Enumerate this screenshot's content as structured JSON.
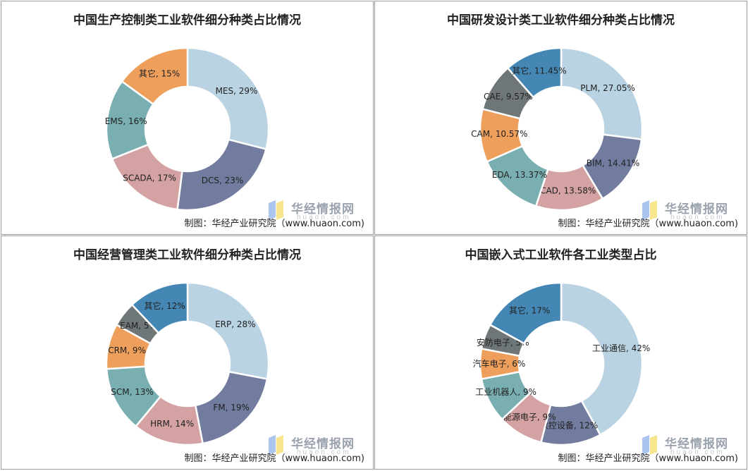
{
  "watermark": {
    "brand": "华经情报网",
    "site": "huaon.com"
  },
  "chart_data": [
    {
      "type": "pie",
      "title": "中国生产控制类工业软件细分种类占比情况",
      "credit": "制图：华经产业研究院（www.huaon.com)",
      "slices": [
        {
          "label": "MES, 29%",
          "value": 29,
          "color": "#b9d3e3"
        },
        {
          "label": "DCS, 23%",
          "value": 23,
          "color": "#727c9e"
        },
        {
          "label": "SCADA, 17%",
          "value": 17,
          "color": "#d4a2a3"
        },
        {
          "label": "EMS, 16%",
          "value": 16,
          "color": "#79afb1"
        },
        {
          "label": "其它, 15%",
          "value": 15,
          "color": "#ee9f5b"
        }
      ]
    },
    {
      "type": "pie",
      "title": "中国研发设计类工业软件细分种类占比情况",
      "credit": "制图：华经产业研究院（www.huaon.com)",
      "slices": [
        {
          "label": "PLM, 27.05%",
          "value": 27.05,
          "color": "#b9d3e3"
        },
        {
          "label": "BIM, 14.41%",
          "value": 14.41,
          "color": "#727c9e"
        },
        {
          "label": "CAD, 13.58%",
          "value": 13.58,
          "color": "#d4a2a3"
        },
        {
          "label": "EDA, 13.37%",
          "value": 13.37,
          "color": "#79afb1"
        },
        {
          "label": "CAM, 10.57%",
          "value": 10.57,
          "color": "#ee9f5b"
        },
        {
          "label": "CAE, 9.57%",
          "value": 9.57,
          "color": "#6f7677"
        },
        {
          "label": "其它, 11.45%",
          "value": 11.45,
          "color": "#4487b4"
        }
      ]
    },
    {
      "type": "pie",
      "title": "中国经营管理类工业软件细分种类占比情况",
      "credit": "制图：华经产业研究院（www.huaon.com)",
      "slices": [
        {
          "label": "ERP, 28%",
          "value": 28,
          "color": "#b9d3e3"
        },
        {
          "label": "FM, 19%",
          "value": 19,
          "color": "#727c9e"
        },
        {
          "label": "HRM, 14%",
          "value": 14,
          "color": "#d4a2a3"
        },
        {
          "label": "SCM, 13%",
          "value": 13,
          "color": "#79afb1"
        },
        {
          "label": "CRM, 9%",
          "value": 9,
          "color": "#ee9f5b"
        },
        {
          "label": "EAM, 5%",
          "value": 5,
          "color": "#6f7677"
        },
        {
          "label": "其它, 12%",
          "value": 12,
          "color": "#4487b4"
        }
      ]
    },
    {
      "type": "pie",
      "title": "中国嵌入式工业软件各工业类型占比",
      "credit": "制图：华经产业研究院（www.huaon.com)",
      "slices": [
        {
          "label": "工业通信, 42%",
          "value": 42,
          "color": "#b9d3e3"
        },
        {
          "label": "数控设备, 12%",
          "value": 12,
          "color": "#727c9e"
        },
        {
          "label": "能源电子, 9%",
          "value": 9,
          "color": "#d4a2a3"
        },
        {
          "label": "工业机器人, 9%",
          "value": 9,
          "color": "#79afb1"
        },
        {
          "label": "汽车电子, 6%",
          "value": 6,
          "color": "#ee9f5b"
        },
        {
          "label": "安防电子, 5%",
          "value": 5,
          "color": "#6f7677"
        },
        {
          "label": "其它, 17%",
          "value": 17,
          "color": "#4487b4"
        }
      ]
    }
  ]
}
